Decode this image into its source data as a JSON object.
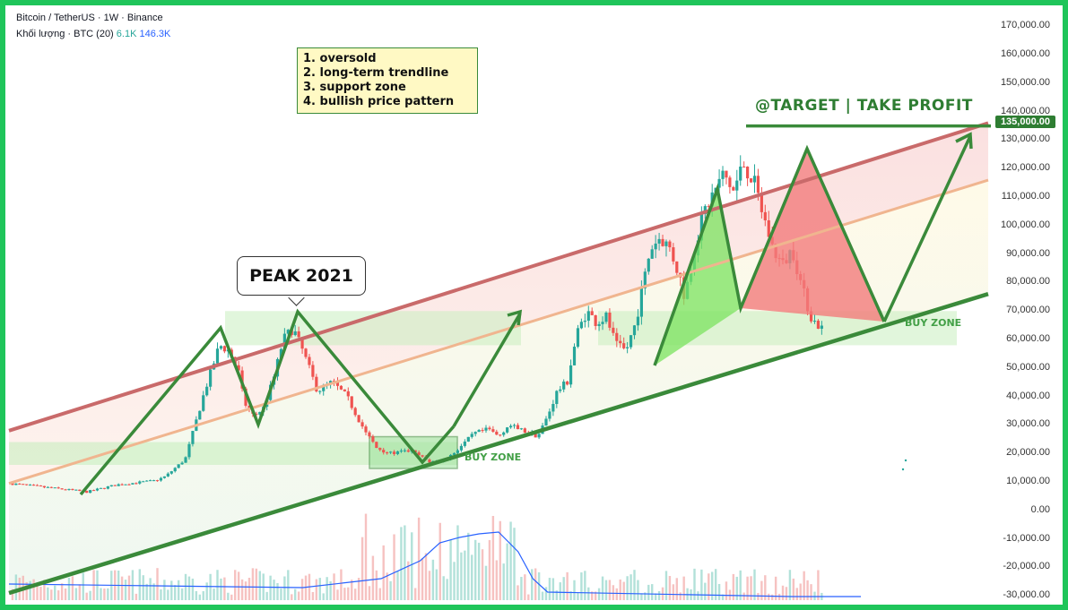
{
  "header": {
    "symbol_line": "Bitcoin / TetherUS · 1W · Binance",
    "volume_label": "Khối lượng · BTC (20)",
    "volume_value_1": "6.1K",
    "volume_value_2": "146.3K"
  },
  "annotations": {
    "notes": [
      "1. oversold",
      "2. long-term trendline",
      "3. support zone",
      "4. bullish price pattern"
    ],
    "peak_label": "PEAK 2021",
    "buy_zone_1": "BUY ZONE",
    "buy_zone_2": "BUY ZONE",
    "target_label": "@TARGET | TAKE PROFIT",
    "target_price": "135,000.00"
  },
  "colors": {
    "up": "#26a69a",
    "down": "#ef5350",
    "trend_green": "#3a8a3a",
    "upper_channel": "#c96a6a",
    "mid_channel": "#f0b58f",
    "volume_ma": "#2962ff",
    "frame": "#1fc55a"
  },
  "chart_data": {
    "type": "candlestick",
    "y_axis": {
      "ticks": [
        170000,
        160000,
        150000,
        140000,
        130000,
        120000,
        110000,
        100000,
        90000,
        80000,
        70000,
        60000,
        50000,
        40000,
        30000,
        20000,
        10000,
        0,
        -10000,
        -20000,
        -30000
      ],
      "tick_labels": [
        "170,000.00",
        "160,000.00",
        "150,000.00",
        "140,000.00",
        "130,000.00",
        "120,000.00",
        "110,000.00",
        "100,000.00",
        "90,000.00",
        "80,000.00",
        "70,000.00",
        "60,000.00",
        "50,000.00",
        "40,000.00",
        "30,000.00",
        "20,000.00",
        "10,000.00",
        "0.00",
        "-10,000.00",
        "-20,000.00",
        "-30,000.00"
      ],
      "range": [
        -31500,
        174500
      ]
    },
    "price_path": [
      [
        0,
        9500
      ],
      [
        0.04,
        8000
      ],
      [
        0.08,
        6500
      ],
      [
        0.11,
        9000
      ],
      [
        0.15,
        10500
      ],
      [
        0.16,
        12000
      ],
      [
        0.18,
        18000
      ],
      [
        0.19,
        30000
      ],
      [
        0.2,
        42000
      ],
      [
        0.215,
        58000
      ],
      [
        0.225,
        56000
      ],
      [
        0.235,
        48000
      ],
      [
        0.24,
        38000
      ],
      [
        0.25,
        33000
      ],
      [
        0.26,
        36000
      ],
      [
        0.27,
        46000
      ],
      [
        0.28,
        60000
      ],
      [
        0.29,
        64000
      ],
      [
        0.3,
        56000
      ],
      [
        0.315,
        42000
      ],
      [
        0.33,
        45000
      ],
      [
        0.345,
        40000
      ],
      [
        0.36,
        30000
      ],
      [
        0.375,
        22000
      ],
      [
        0.39,
        20000
      ],
      [
        0.41,
        21000
      ],
      [
        0.43,
        17000
      ],
      [
        0.445,
        17500
      ],
      [
        0.46,
        22000
      ],
      [
        0.475,
        27000
      ],
      [
        0.49,
        28500
      ],
      [
        0.5,
        26000
      ],
      [
        0.51,
        30000
      ],
      [
        0.525,
        28000
      ],
      [
        0.54,
        26000
      ],
      [
        0.55,
        33000
      ],
      [
        0.56,
        42000
      ],
      [
        0.57,
        45000
      ],
      [
        0.58,
        62000
      ],
      [
        0.59,
        70000
      ],
      [
        0.6,
        66000
      ],
      [
        0.61,
        68000
      ],
      [
        0.62,
        58000
      ],
      [
        0.63,
        56000
      ],
      [
        0.64,
        66000
      ],
      [
        0.655,
        92000
      ],
      [
        0.665,
        96000
      ],
      [
        0.675,
        92000
      ],
      [
        0.685,
        82000
      ],
      [
        0.69,
        75000
      ],
      [
        0.7,
        92000
      ],
      [
        0.71,
        105000
      ],
      [
        0.72,
        112000
      ],
      [
        0.73,
        118000
      ],
      [
        0.74,
        112000
      ],
      [
        0.75,
        122000
      ],
      [
        0.76,
        116000
      ],
      [
        0.77,
        104000
      ],
      [
        0.78,
        92000
      ],
      [
        0.79,
        86000
      ],
      [
        0.8,
        92000
      ],
      [
        0.81,
        78000
      ],
      [
        0.82,
        67000
      ],
      [
        0.83,
        64000
      ]
    ],
    "trendlines": {
      "support": {
        "from": [
          0,
          -29000
        ],
        "to": [
          1,
          76000
        ]
      },
      "resistance": {
        "from": [
          0,
          28000
        ],
        "to": [
          1,
          136000
        ]
      },
      "target_level": 135000
    },
    "zones": [
      {
        "name": "peak zone",
        "y_range": [
          58000,
          70000
        ]
      },
      {
        "name": "buy zone 1",
        "y_range": [
          16000,
          24000
        ]
      },
      {
        "name": "buy zone 2",
        "y_range": [
          58000,
          70000
        ]
      }
    ],
    "volume": {
      "ma_label": "Khối lượng · BTC (20)",
      "values": [
        "6.1K",
        "146.3K"
      ]
    }
  }
}
